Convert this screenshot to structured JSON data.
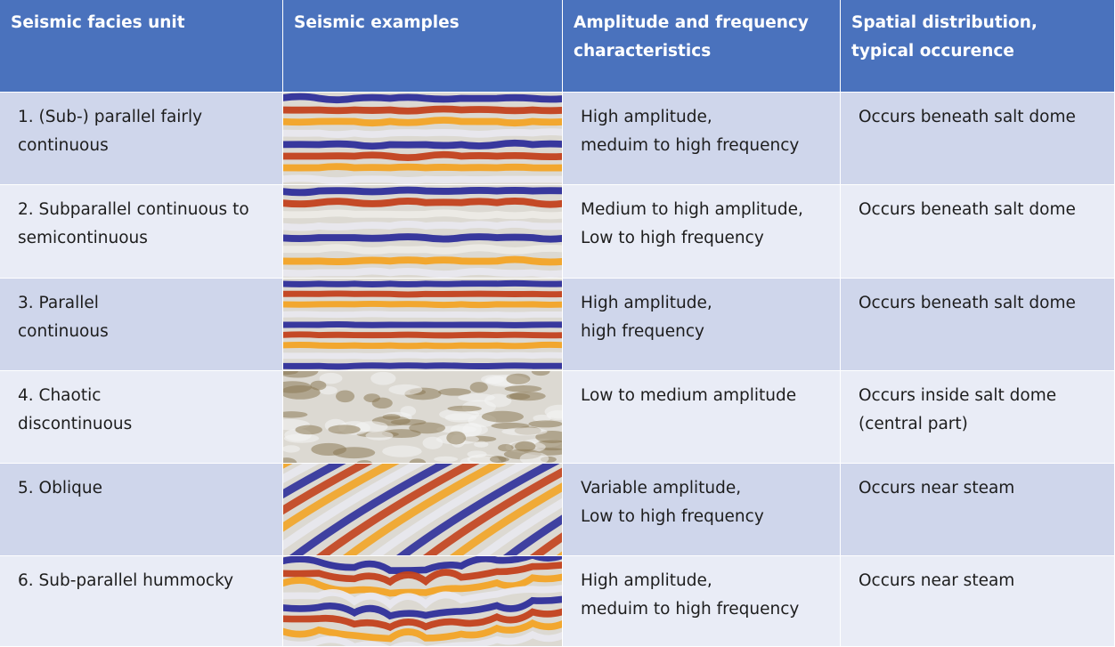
{
  "table": {
    "header": [
      [
        "Seismic facies unit"
      ],
      [
        "Seismic examples"
      ],
      [
        "Amplitude and frequency",
        "characteristics"
      ],
      [
        "Spatial distribution,",
        "typical occurence"
      ]
    ],
    "rows": [
      [
        [
          "1. (Sub-) parallel fairly",
          "continuous"
        ],
        [
          "High amplitude,",
          "meduim to high frequency"
        ],
        [
          "Occurs beneath salt dome"
        ]
      ],
      [
        [
          "2. Subparallel  continuous to",
          "semicontinuous"
        ],
        [
          "Medium to high amplitude,",
          "Low to high frequency"
        ],
        [
          "Occurs beneath salt dome"
        ]
      ],
      [
        [
          "3. Parallel",
          "continuous"
        ],
        [
          "High amplitude,",
          "high frequency"
        ],
        [
          "Occurs beneath salt dome"
        ]
      ],
      [
        [
          "4. Chaotic",
          "discontinuous"
        ],
        [
          "Low to medium  amplitude"
        ],
        [
          "Occurs inside salt dome",
          "(central part)"
        ]
      ],
      [
        [
          "5. Oblique"
        ],
        [
          "Variable amplitude,",
          "Low to high frequency"
        ],
        [
          "Occurs near steam"
        ]
      ],
      [
        [
          "6. Sub-parallel hummocky"
        ],
        [
          "High amplitude,",
          "meduim to high frequency"
        ],
        [
          "Occurs near steam"
        ]
      ]
    ]
  }
}
